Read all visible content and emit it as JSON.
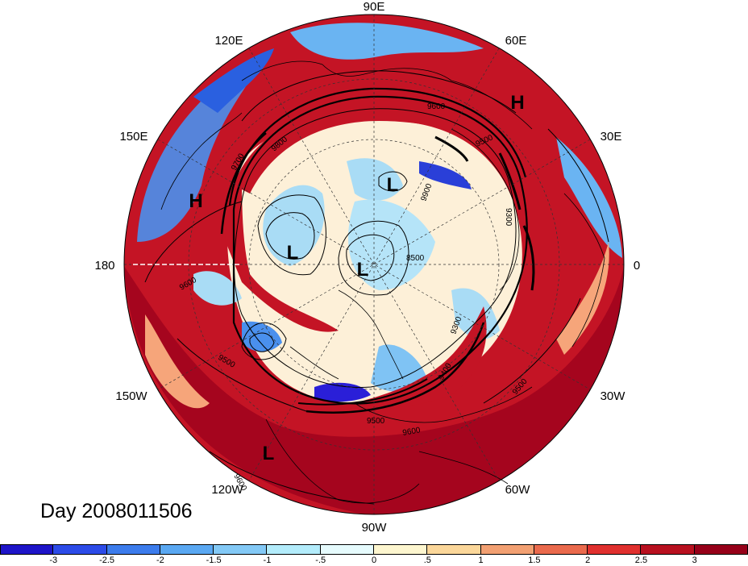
{
  "map": {
    "longitude_labels": [
      "90E",
      "120E",
      "60E",
      "150E",
      "30E",
      "180",
      "0",
      "150W",
      "30W",
      "120W",
      "60W",
      "90W"
    ],
    "pressure_systems": [
      {
        "label": "H",
        "region": "northern-europe"
      },
      {
        "label": "H",
        "region": "east-asia-pacific"
      },
      {
        "label": "L",
        "region": "central-siberia"
      },
      {
        "label": "L",
        "region": "east-siberian-sea"
      },
      {
        "label": "L",
        "region": "north-pole"
      },
      {
        "label": "L",
        "region": "northeast-pacific"
      }
    ],
    "contour_labels": [
      "9600",
      "9700",
      "9800",
      "9500",
      "9300",
      "9900",
      "8500",
      "9400",
      "9500",
      "9600",
      "9500",
      "9500",
      "9600",
      "9600",
      "9300"
    ],
    "colors": {
      "strong_negative": "#2a1fd8",
      "negative": "#4a90ee",
      "weak_negative": "#a9dcf5",
      "neutral": "#fdfbe3",
      "weak_positive": "#f6a57a",
      "positive": "#e8362e",
      "strong_positive": "#a5051e"
    }
  },
  "title": "Day 2008011506",
  "colorbar": {
    "ticks": [
      "-3",
      "-2.5",
      "-2",
      "-1.5",
      "-1",
      "-.5",
      "0",
      ".5",
      "1",
      "1.5",
      "2",
      "2.5",
      "3"
    ],
    "bins": [
      "#1e14c8",
      "#2c4be8",
      "#3c7cec",
      "#5aa8f2",
      "#83c9f6",
      "#b3ecfb",
      "#e6fbfd",
      "#fdf6cf",
      "#fbd79a",
      "#f2a072",
      "#ea6a4d",
      "#e0302e",
      "#b8101f",
      "#960019"
    ]
  }
}
